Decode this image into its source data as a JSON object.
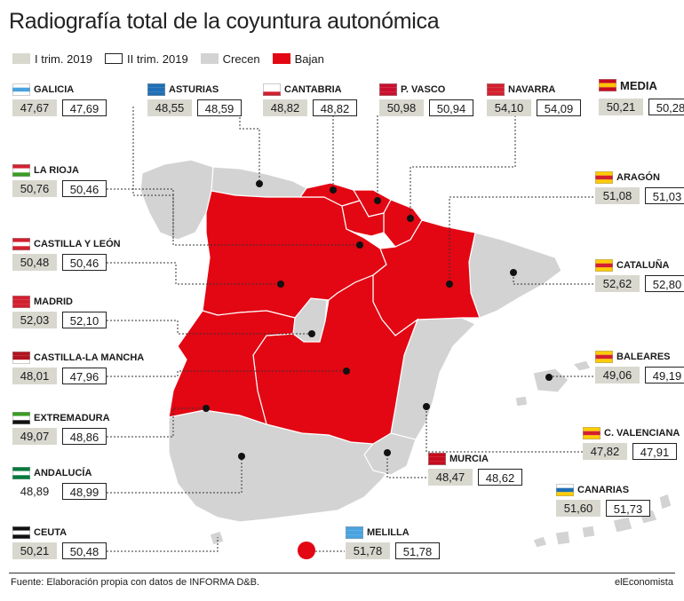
{
  "title": "Radiografía total de la coyuntura autonómica",
  "legend": [
    {
      "label": "I trim. 2019",
      "swatch": "t1"
    },
    {
      "label": "II trim. 2019",
      "swatch": "t2"
    },
    {
      "label": "Crecen",
      "swatch": "up"
    },
    {
      "label": "Bajan",
      "swatch": "down"
    }
  ],
  "colors": {
    "crecen": "#d3d3d3",
    "bajan": "#e30613",
    "t1_box": "#d9d8cf",
    "border": "#ffffff"
  },
  "regions": [
    {
      "name": "GALICIA",
      "q1": "47,67",
      "q2": "47,69",
      "trend": "crecen",
      "flag": "galicia-flag-icon"
    },
    {
      "name": "ASTURIAS",
      "q1": "48,55",
      "q2": "48,59",
      "trend": "crecen",
      "flag": "asturias-flag-icon"
    },
    {
      "name": "CANTABRIA",
      "q1": "48,82",
      "q2": "48,82",
      "trend": "bajan",
      "flag": "cantabria-flag-icon"
    },
    {
      "name": "P. VASCO",
      "q1": "50,98",
      "q2": "50,94",
      "trend": "bajan",
      "flag": "pais-vasco-flag-icon"
    },
    {
      "name": "NAVARRA",
      "q1": "54,10",
      "q2": "54,09",
      "trend": "bajan",
      "flag": "navarra-flag-icon"
    },
    {
      "name": "MEDIA",
      "q1": "50,21",
      "q2": "50,28",
      "trend": "crecen",
      "flag": "spain-flag-icon"
    },
    {
      "name": "LA RIOJA",
      "q1": "50,76",
      "q2": "50,46",
      "trend": "bajan",
      "flag": "la-rioja-flag-icon"
    },
    {
      "name": "ARAGÓN",
      "q1": "51,08",
      "q2": "51,03",
      "trend": "bajan",
      "flag": "aragon-flag-icon"
    },
    {
      "name": "CASTILLA Y LEÓN",
      "q1": "50,48",
      "q2": "50,46",
      "trend": "bajan",
      "flag": "castilla-leon-flag-icon"
    },
    {
      "name": "CATALUÑA",
      "q1": "52,62",
      "q2": "52,80",
      "trend": "crecen",
      "flag": "cataluna-flag-icon"
    },
    {
      "name": "MADRID",
      "q1": "52,03",
      "q2": "52,10",
      "trend": "crecen",
      "flag": "madrid-flag-icon"
    },
    {
      "name": "CASTILLA-LA MANCHA",
      "q1": "48,01",
      "q2": "47,96",
      "trend": "bajan",
      "flag": "castilla-la-mancha-flag-icon"
    },
    {
      "name": "BALEARES",
      "q1": "49,06",
      "q2": "49,19",
      "trend": "crecen",
      "flag": "baleares-flag-icon"
    },
    {
      "name": "EXTREMADURA",
      "q1": "49,07",
      "q2": "48,86",
      "trend": "bajan",
      "flag": "extremadura-flag-icon"
    },
    {
      "name": "C. VALENCIANA",
      "q1": "47,82",
      "q2": "47,91",
      "trend": "crecen",
      "flag": "valenciana-flag-icon"
    },
    {
      "name": "MURCIA",
      "q1": "48,47",
      "q2": "48,62",
      "trend": "crecen",
      "flag": "murcia-flag-icon"
    },
    {
      "name": "ANDALUCÍA",
      "q1": "48,89",
      "q2": "48,99",
      "trend": "crecen",
      "flag": "andalucia-flag-icon"
    },
    {
      "name": "CANARIAS",
      "q1": "51,60",
      "q2": "51,73",
      "trend": "crecen",
      "flag": "canarias-flag-icon"
    },
    {
      "name": "CEUTA",
      "q1": "50,21",
      "q2": "50,48",
      "trend": "crecen",
      "flag": "ceuta-flag-icon"
    },
    {
      "name": "MELILLA",
      "q1": "51,78",
      "q2": "51,78",
      "trend": "bajan",
      "flag": "melilla-flag-icon"
    }
  ],
  "footer": {
    "source": "Fuente: Elaboración propia con datos de INFORMA D&B.",
    "brand": "elEconomista"
  }
}
